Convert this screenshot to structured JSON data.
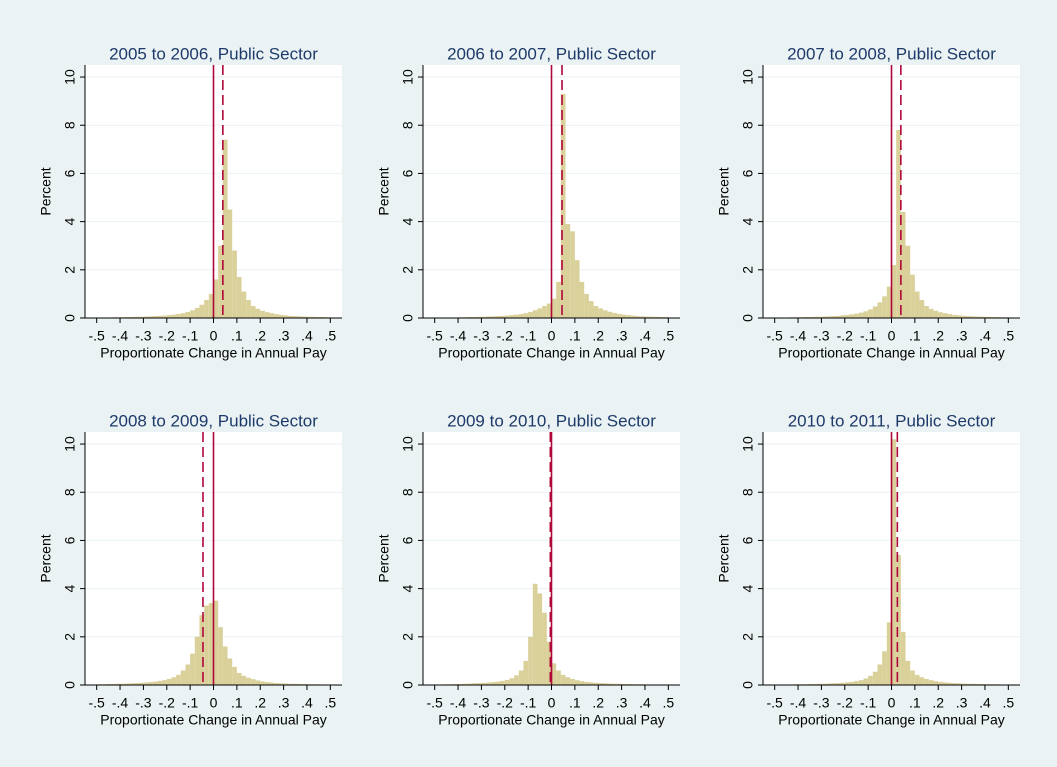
{
  "chart_data": [
    {
      "type": "histogram",
      "title": "2005 to 2006, Public Sector",
      "xlabel": "Proportionate Change in Annual Pay",
      "ylabel": "Percent",
      "color": "#d9d09a",
      "line_color": "#b0063a",
      "bins": [
        -0.5,
        -0.48,
        -0.46,
        -0.44,
        -0.42,
        -0.4,
        -0.38,
        -0.36,
        -0.34,
        -0.32,
        -0.3,
        -0.28,
        -0.26,
        -0.24,
        -0.22,
        -0.2,
        -0.18,
        -0.16,
        -0.14,
        -0.12,
        -0.1,
        -0.08,
        -0.06,
        -0.04,
        -0.02,
        0,
        0.02,
        0.04,
        0.06,
        0.08,
        0.1,
        0.12,
        0.14,
        0.16,
        0.18,
        0.2,
        0.22,
        0.24,
        0.26,
        0.28,
        0.3,
        0.32,
        0.34,
        0.36,
        0.38,
        0.4,
        0.42,
        0.44,
        0.46,
        0.48,
        0.5
      ],
      "values": [
        0.02,
        0.02,
        0.02,
        0.03,
        0.03,
        0.03,
        0.04,
        0.04,
        0.05,
        0.05,
        0.06,
        0.07,
        0.08,
        0.09,
        0.1,
        0.12,
        0.14,
        0.17,
        0.2,
        0.25,
        0.32,
        0.42,
        0.55,
        0.75,
        1.0,
        1.6,
        3.0,
        7.4,
        4.5,
        2.8,
        1.7,
        1.1,
        0.75,
        0.5,
        0.38,
        0.3,
        0.24,
        0.2,
        0.16,
        0.13,
        0.11,
        0.09,
        0.08,
        0.07,
        0.06,
        0.05,
        0.05,
        0.04,
        0.04,
        0.03
      ],
      "reference_lines": [
        {
          "x": 0,
          "style": "solid"
        },
        {
          "x": 0.04,
          "style": "dashed"
        }
      ],
      "xlim": [
        -0.55,
        0.55
      ],
      "ylim": [
        0,
        10.5
      ],
      "xticks": [
        {
          "value": -0.5,
          "label": "-.5"
        },
        {
          "value": -0.4,
          "label": "-.4"
        },
        {
          "value": -0.3,
          "label": "-.3"
        },
        {
          "value": -0.2,
          "label": "-.2"
        },
        {
          "value": -0.1,
          "label": "-.1"
        },
        0,
        {
          "value": 0.1,
          "label": ".1"
        },
        {
          "value": 0.2,
          "label": ".2"
        },
        {
          "value": 0.3,
          "label": ".3"
        },
        {
          "value": 0.4,
          "label": ".4"
        },
        {
          "value": 0.5,
          "label": ".5"
        }
      ],
      "yticks": [
        0,
        2,
        4,
        6,
        8,
        10
      ],
      "grid": true
    },
    {
      "type": "histogram",
      "title": "2006 to 2007, Public Sector",
      "xlabel": "Proportionate Change in Annual Pay",
      "ylabel": "Percent",
      "color": "#d9d09a",
      "line_color": "#b0063a",
      "bins": [
        -0.5,
        -0.48,
        -0.46,
        -0.44,
        -0.42,
        -0.4,
        -0.38,
        -0.36,
        -0.34,
        -0.32,
        -0.3,
        -0.28,
        -0.26,
        -0.24,
        -0.22,
        -0.2,
        -0.18,
        -0.16,
        -0.14,
        -0.12,
        -0.1,
        -0.08,
        -0.06,
        -0.04,
        -0.02,
        0,
        0.02,
        0.04,
        0.06,
        0.08,
        0.1,
        0.12,
        0.14,
        0.16,
        0.18,
        0.2,
        0.22,
        0.24,
        0.26,
        0.28,
        0.3,
        0.32,
        0.34,
        0.36,
        0.38,
        0.4,
        0.42,
        0.44,
        0.46,
        0.48,
        0.5
      ],
      "values": [
        0.02,
        0.02,
        0.02,
        0.02,
        0.02,
        0.03,
        0.03,
        0.04,
        0.04,
        0.05,
        0.05,
        0.06,
        0.07,
        0.08,
        0.09,
        0.1,
        0.12,
        0.14,
        0.16,
        0.2,
        0.25,
        0.32,
        0.4,
        0.5,
        0.6,
        0.8,
        1.5,
        9.3,
        3.9,
        3.6,
        2.4,
        1.5,
        1.0,
        0.7,
        0.5,
        0.4,
        0.32,
        0.26,
        0.21,
        0.17,
        0.14,
        0.12,
        0.1,
        0.08,
        0.07,
        0.06,
        0.05,
        0.05,
        0.04,
        0.04
      ],
      "reference_lines": [
        {
          "x": 0,
          "style": "solid"
        },
        {
          "x": 0.045,
          "style": "dashed"
        }
      ],
      "xlim": [
        -0.55,
        0.55
      ],
      "ylim": [
        0,
        10.5
      ],
      "xticks": [
        {
          "value": -0.5,
          "label": "-.5"
        },
        {
          "value": -0.4,
          "label": "-.4"
        },
        {
          "value": -0.3,
          "label": "-.3"
        },
        {
          "value": -0.2,
          "label": "-.2"
        },
        {
          "value": -0.1,
          "label": "-.1"
        },
        0,
        {
          "value": 0.1,
          "label": ".1"
        },
        {
          "value": 0.2,
          "label": ".2"
        },
        {
          "value": 0.3,
          "label": ".3"
        },
        {
          "value": 0.4,
          "label": ".4"
        },
        {
          "value": 0.5,
          "label": ".5"
        }
      ],
      "yticks": [
        0,
        2,
        4,
        6,
        8,
        10
      ],
      "grid": true
    },
    {
      "type": "histogram",
      "title": "2007 to 2008, Public Sector",
      "xlabel": "Proportionate Change in Annual Pay",
      "ylabel": "Percent",
      "color": "#d9d09a",
      "line_color": "#b0063a",
      "bins": [
        -0.5,
        -0.48,
        -0.46,
        -0.44,
        -0.42,
        -0.4,
        -0.38,
        -0.36,
        -0.34,
        -0.32,
        -0.3,
        -0.28,
        -0.26,
        -0.24,
        -0.22,
        -0.2,
        -0.18,
        -0.16,
        -0.14,
        -0.12,
        -0.1,
        -0.08,
        -0.06,
        -0.04,
        -0.02,
        0,
        0.02,
        0.04,
        0.06,
        0.08,
        0.1,
        0.12,
        0.14,
        0.16,
        0.18,
        0.2,
        0.22,
        0.24,
        0.26,
        0.28,
        0.3,
        0.32,
        0.34,
        0.36,
        0.38,
        0.4,
        0.42,
        0.44,
        0.46,
        0.48,
        0.5
      ],
      "values": [
        0.02,
        0.02,
        0.02,
        0.03,
        0.03,
        0.03,
        0.04,
        0.04,
        0.05,
        0.05,
        0.06,
        0.07,
        0.08,
        0.09,
        0.11,
        0.13,
        0.15,
        0.18,
        0.22,
        0.28,
        0.36,
        0.48,
        0.65,
        0.9,
        1.3,
        2.2,
        7.8,
        4.4,
        3.0,
        1.8,
        1.1,
        0.75,
        0.5,
        0.38,
        0.3,
        0.24,
        0.2,
        0.16,
        0.13,
        0.11,
        0.09,
        0.08,
        0.07,
        0.06,
        0.05,
        0.05,
        0.04,
        0.04,
        0.03,
        0.03
      ],
      "reference_lines": [
        {
          "x": 0,
          "style": "solid"
        },
        {
          "x": 0.04,
          "style": "dashed"
        }
      ],
      "xlim": [
        -0.55,
        0.55
      ],
      "ylim": [
        0,
        10.5
      ],
      "xticks": [
        {
          "value": -0.5,
          "label": "-.5"
        },
        {
          "value": -0.4,
          "label": "-.4"
        },
        {
          "value": -0.3,
          "label": "-.3"
        },
        {
          "value": -0.2,
          "label": "-.2"
        },
        {
          "value": -0.1,
          "label": "-.1"
        },
        0,
        {
          "value": 0.1,
          "label": ".1"
        },
        {
          "value": 0.2,
          "label": ".2"
        },
        {
          "value": 0.3,
          "label": ".3"
        },
        {
          "value": 0.4,
          "label": ".4"
        },
        {
          "value": 0.5,
          "label": ".5"
        }
      ],
      "yticks": [
        0,
        2,
        4,
        6,
        8,
        10
      ],
      "grid": true
    },
    {
      "type": "histogram",
      "title": "2008 to 2009, Public Sector",
      "xlabel": "Proportionate Change in Annual Pay",
      "ylabel": "Percent",
      "color": "#d9d09a",
      "line_color": "#b0063a",
      "bins": [
        -0.5,
        -0.48,
        -0.46,
        -0.44,
        -0.42,
        -0.4,
        -0.38,
        -0.36,
        -0.34,
        -0.32,
        -0.3,
        -0.28,
        -0.26,
        -0.24,
        -0.22,
        -0.2,
        -0.18,
        -0.16,
        -0.14,
        -0.12,
        -0.1,
        -0.08,
        -0.06,
        -0.04,
        -0.02,
        0,
        0.02,
        0.04,
        0.06,
        0.08,
        0.1,
        0.12,
        0.14,
        0.16,
        0.18,
        0.2,
        0.22,
        0.24,
        0.26,
        0.28,
        0.3,
        0.32,
        0.34,
        0.36,
        0.38,
        0.4,
        0.42,
        0.44,
        0.46,
        0.48,
        0.5
      ],
      "values": [
        0.03,
        0.03,
        0.04,
        0.04,
        0.05,
        0.05,
        0.06,
        0.07,
        0.08,
        0.09,
        0.1,
        0.12,
        0.14,
        0.17,
        0.2,
        0.25,
        0.32,
        0.42,
        0.6,
        0.85,
        1.3,
        2.0,
        2.9,
        3.3,
        3.4,
        3.5,
        2.4,
        1.6,
        1.1,
        0.75,
        0.5,
        0.38,
        0.3,
        0.24,
        0.19,
        0.15,
        0.12,
        0.1,
        0.08,
        0.07,
        0.06,
        0.05,
        0.05,
        0.04,
        0.04,
        0.03,
        0.03,
        0.03,
        0.02,
        0.02
      ],
      "reference_lines": [
        {
          "x": 0,
          "style": "solid"
        },
        {
          "x": -0.045,
          "style": "dashed"
        }
      ],
      "xlim": [
        -0.55,
        0.55
      ],
      "ylim": [
        0,
        10.5
      ],
      "xticks": [
        {
          "value": -0.5,
          "label": "-.5"
        },
        {
          "value": -0.4,
          "label": "-.4"
        },
        {
          "value": -0.3,
          "label": "-.3"
        },
        {
          "value": -0.2,
          "label": "-.2"
        },
        {
          "value": -0.1,
          "label": "-.1"
        },
        0,
        {
          "value": 0.1,
          "label": ".1"
        },
        {
          "value": 0.2,
          "label": ".2"
        },
        {
          "value": 0.3,
          "label": ".3"
        },
        {
          "value": 0.4,
          "label": ".4"
        },
        {
          "value": 0.5,
          "label": ".5"
        }
      ],
      "yticks": [
        0,
        2,
        4,
        6,
        8,
        10
      ],
      "grid": true
    },
    {
      "type": "histogram",
      "title": "2009 to 2010, Public Sector",
      "xlabel": "Proportionate Change in Annual Pay",
      "ylabel": "Percent",
      "color": "#d9d09a",
      "line_color": "#b0063a",
      "bins": [
        -0.5,
        -0.48,
        -0.46,
        -0.44,
        -0.42,
        -0.4,
        -0.38,
        -0.36,
        -0.34,
        -0.32,
        -0.3,
        -0.28,
        -0.26,
        -0.24,
        -0.22,
        -0.2,
        -0.18,
        -0.16,
        -0.14,
        -0.12,
        -0.1,
        -0.08,
        -0.06,
        -0.04,
        -0.02,
        0,
        0.02,
        0.04,
        0.06,
        0.08,
        0.1,
        0.12,
        0.14,
        0.16,
        0.18,
        0.2,
        0.22,
        0.24,
        0.26,
        0.28,
        0.3,
        0.32,
        0.34,
        0.36,
        0.38,
        0.4,
        0.42,
        0.44,
        0.46,
        0.48,
        0.5
      ],
      "values": [
        0.02,
        0.02,
        0.03,
        0.03,
        0.04,
        0.04,
        0.05,
        0.06,
        0.07,
        0.08,
        0.09,
        0.1,
        0.12,
        0.14,
        0.17,
        0.21,
        0.28,
        0.4,
        0.6,
        1.0,
        2.0,
        4.2,
        3.8,
        3.0,
        1.8,
        0.9,
        0.6,
        0.42,
        0.32,
        0.25,
        0.2,
        0.16,
        0.13,
        0.11,
        0.09,
        0.08,
        0.07,
        0.06,
        0.05,
        0.05,
        0.04,
        0.04,
        0.03,
        0.03,
        0.03,
        0.02,
        0.02,
        0.02,
        0.02,
        0.02
      ],
      "reference_lines": [
        {
          "x": 0,
          "style": "solid"
        },
        {
          "x": -0.005,
          "style": "dashed"
        }
      ],
      "xlim": [
        -0.55,
        0.55
      ],
      "ylim": [
        0,
        10.5
      ],
      "xticks": [
        {
          "value": -0.5,
          "label": "-.5"
        },
        {
          "value": -0.4,
          "label": "-.4"
        },
        {
          "value": -0.3,
          "label": "-.3"
        },
        {
          "value": -0.2,
          "label": "-.2"
        },
        {
          "value": -0.1,
          "label": "-.1"
        },
        0,
        {
          "value": 0.1,
          "label": ".1"
        },
        {
          "value": 0.2,
          "label": ".2"
        },
        {
          "value": 0.3,
          "label": ".3"
        },
        {
          "value": 0.4,
          "label": ".4"
        },
        {
          "value": 0.5,
          "label": ".5"
        }
      ],
      "yticks": [
        0,
        2,
        4,
        6,
        8,
        10
      ],
      "grid": true
    },
    {
      "type": "histogram",
      "title": "2010 to 2011, Public Sector",
      "xlabel": "Proportionate Change in Annual Pay",
      "ylabel": "Percent",
      "color": "#d9d09a",
      "line_color": "#b0063a",
      "bins": [
        -0.5,
        -0.48,
        -0.46,
        -0.44,
        -0.42,
        -0.4,
        -0.38,
        -0.36,
        -0.34,
        -0.32,
        -0.3,
        -0.28,
        -0.26,
        -0.24,
        -0.22,
        -0.2,
        -0.18,
        -0.16,
        -0.14,
        -0.12,
        -0.1,
        -0.08,
        -0.06,
        -0.04,
        -0.02,
        0,
        0.02,
        0.04,
        0.06,
        0.08,
        0.1,
        0.12,
        0.14,
        0.16,
        0.18,
        0.2,
        0.22,
        0.24,
        0.26,
        0.28,
        0.3,
        0.32,
        0.34,
        0.36,
        0.38,
        0.4,
        0.42,
        0.44,
        0.46,
        0.48,
        0.5
      ],
      "values": [
        0.02,
        0.02,
        0.02,
        0.02,
        0.03,
        0.03,
        0.03,
        0.04,
        0.04,
        0.05,
        0.05,
        0.06,
        0.07,
        0.08,
        0.09,
        0.11,
        0.13,
        0.16,
        0.2,
        0.27,
        0.38,
        0.55,
        0.85,
        1.4,
        2.6,
        10.2,
        5.4,
        2.2,
        1.0,
        0.6,
        0.42,
        0.32,
        0.25,
        0.2,
        0.16,
        0.13,
        0.11,
        0.09,
        0.08,
        0.07,
        0.06,
        0.05,
        0.05,
        0.04,
        0.04,
        0.03,
        0.03,
        0.03,
        0.02,
        0.02
      ],
      "reference_lines": [
        {
          "x": 0,
          "style": "solid"
        },
        {
          "x": 0.025,
          "style": "dashed"
        }
      ],
      "xlim": [
        -0.55,
        0.55
      ],
      "ylim": [
        0,
        10.5
      ],
      "xticks": [
        {
          "value": -0.5,
          "label": "-.5"
        },
        {
          "value": -0.4,
          "label": "-.4"
        },
        {
          "value": -0.3,
          "label": "-.3"
        },
        {
          "value": -0.2,
          "label": "-.2"
        },
        {
          "value": -0.1,
          "label": "-.1"
        },
        0,
        {
          "value": 0.1,
          "label": ".1"
        },
        {
          "value": 0.2,
          "label": ".2"
        },
        {
          "value": 0.3,
          "label": ".3"
        },
        {
          "value": 0.4,
          "label": ".4"
        },
        {
          "value": 0.5,
          "label": ".5"
        }
      ],
      "yticks": [
        0,
        2,
        4,
        6,
        8,
        10
      ],
      "grid": true
    }
  ]
}
